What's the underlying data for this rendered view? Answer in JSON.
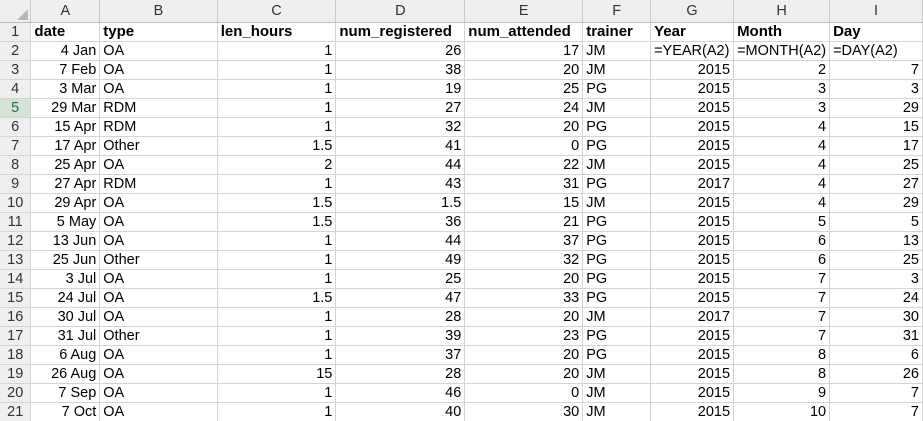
{
  "columns": [
    "A",
    "B",
    "C",
    "D",
    "E",
    "F",
    "G",
    "H",
    "I"
  ],
  "header_row": {
    "num": "1",
    "cells": [
      "date",
      "type",
      "len_hours",
      "num_registered",
      "num_attended",
      "trainer",
      "Year",
      "Month",
      "Day"
    ]
  },
  "rows": [
    {
      "num": "2",
      "cells": [
        "4 Jan",
        "OA",
        "1",
        "26",
        "17",
        "JM",
        "=YEAR(A2)",
        "=MONTH(A2)",
        "=DAY(A2)"
      ]
    },
    {
      "num": "3",
      "cells": [
        "7 Feb",
        "OA",
        "1",
        "38",
        "20",
        "JM",
        "2015",
        "2",
        "7"
      ]
    },
    {
      "num": "4",
      "cells": [
        "3 Mar",
        "OA",
        "1",
        "19",
        "25",
        "PG",
        "2015",
        "3",
        "3"
      ]
    },
    {
      "num": "5",
      "cells": [
        "29 Mar",
        "RDM",
        "1",
        "27",
        "24",
        "JM",
        "2015",
        "3",
        "29"
      ]
    },
    {
      "num": "6",
      "cells": [
        "15 Apr",
        "RDM",
        "1",
        "32",
        "20",
        "PG",
        "2015",
        "4",
        "15"
      ]
    },
    {
      "num": "7",
      "cells": [
        "17 Apr",
        "Other",
        "1.5",
        "41",
        "0",
        "PG",
        "2015",
        "4",
        "17"
      ]
    },
    {
      "num": "8",
      "cells": [
        "25 Apr",
        "OA",
        "2",
        "44",
        "22",
        "JM",
        "2015",
        "4",
        "25"
      ]
    },
    {
      "num": "9",
      "cells": [
        "27 Apr",
        "RDM",
        "1",
        "43",
        "31",
        "PG",
        "2017",
        "4",
        "27"
      ]
    },
    {
      "num": "10",
      "cells": [
        "29 Apr",
        "OA",
        "1.5",
        "1.5",
        "15",
        "JM",
        "2015",
        "4",
        "29"
      ]
    },
    {
      "num": "11",
      "cells": [
        "5 May",
        "OA",
        "1.5",
        "36",
        "21",
        "PG",
        "2015",
        "5",
        "5"
      ]
    },
    {
      "num": "12",
      "cells": [
        "13 Jun",
        "OA",
        "1",
        "44",
        "37",
        "PG",
        "2015",
        "6",
        "13"
      ]
    },
    {
      "num": "13",
      "cells": [
        "25 Jun",
        "Other",
        "1",
        "49",
        "32",
        "PG",
        "2015",
        "6",
        "25"
      ]
    },
    {
      "num": "14",
      "cells": [
        "3 Jul",
        "OA",
        "1",
        "25",
        "20",
        "PG",
        "2015",
        "7",
        "3"
      ]
    },
    {
      "num": "15",
      "cells": [
        "24 Jul",
        "OA",
        "1.5",
        "47",
        "33",
        "PG",
        "2015",
        "7",
        "24"
      ]
    },
    {
      "num": "16",
      "cells": [
        "30 Jul",
        "OA",
        "1",
        "28",
        "20",
        "JM",
        "2017",
        "7",
        "30"
      ]
    },
    {
      "num": "17",
      "cells": [
        "31 Jul",
        "Other",
        "1",
        "39",
        "23",
        "PG",
        "2015",
        "7",
        "31"
      ]
    },
    {
      "num": "18",
      "cells": [
        "6 Aug",
        "OA",
        "1",
        "37",
        "20",
        "PG",
        "2015",
        "8",
        "6"
      ]
    },
    {
      "num": "19",
      "cells": [
        "26 Aug",
        "OA",
        "15",
        "28",
        "20",
        "JM",
        "2015",
        "8",
        "26"
      ]
    },
    {
      "num": "20",
      "cells": [
        "7 Sep",
        "OA",
        "1",
        "46",
        "0",
        "JM",
        "2015",
        "9",
        "7"
      ]
    },
    {
      "num": "21",
      "cells": [
        "7 Oct",
        "OA",
        "1",
        "40",
        "30",
        "JM",
        "2015",
        "10",
        "7"
      ]
    }
  ],
  "alignment": [
    "num",
    "txt",
    "num",
    "num",
    "num",
    "txt",
    "num",
    "num",
    "num"
  ],
  "formula_alignment": [
    "num",
    "txt",
    "num",
    "num",
    "num",
    "txt",
    "txt",
    "txt",
    "txt"
  ],
  "selected_row": "5",
  "colors": {
    "header_bg": "#efefef",
    "grid": "#d4d4d4",
    "accent": "#217346"
  }
}
